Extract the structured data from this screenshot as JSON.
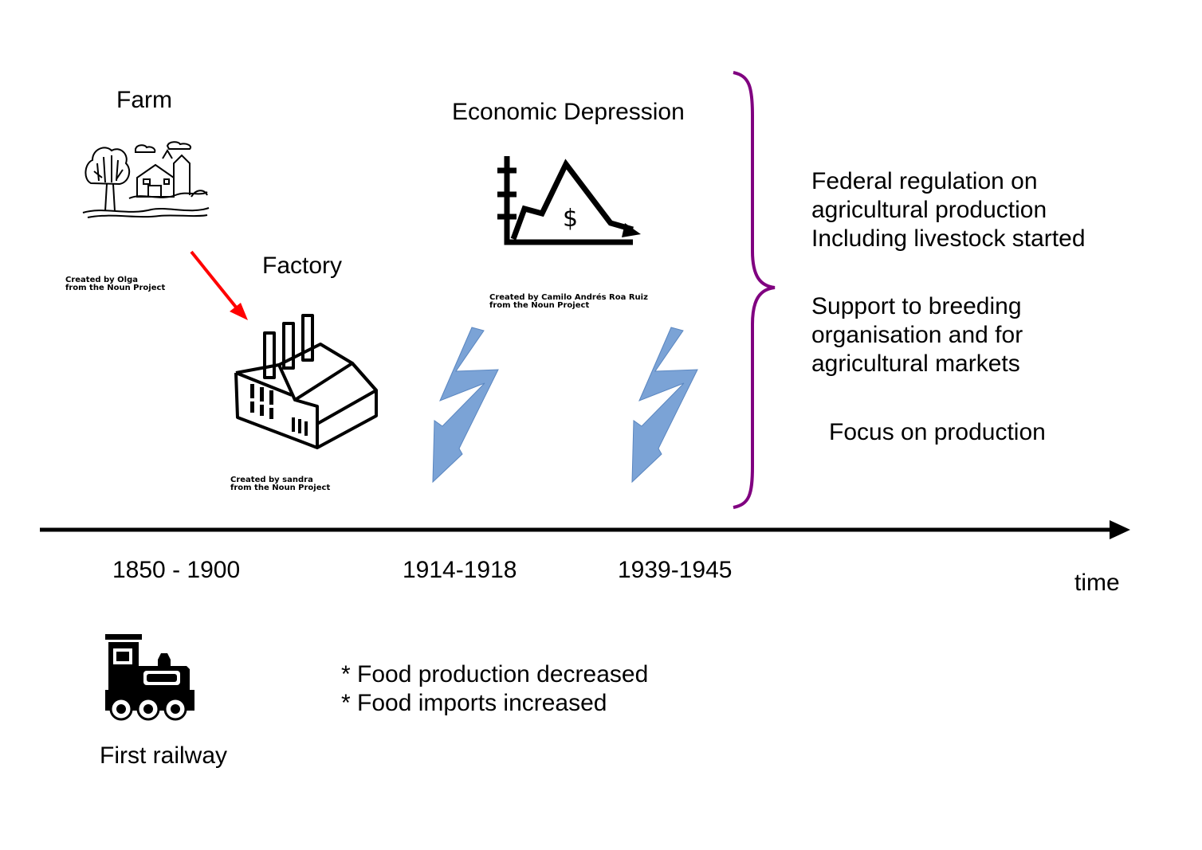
{
  "labels": {
    "farm": "Farm",
    "factory": "Factory",
    "depression": "Economic Depression",
    "railway": "First railway",
    "time": "time"
  },
  "credits": {
    "farm": [
      "Created by Olga",
      "from the Noun Project"
    ],
    "factory": [
      "Created by sandra",
      "from the Noun Project"
    ],
    "depression": [
      "Created by Camilo Andrés Roa Ruiz",
      "from the Noun Project"
    ]
  },
  "periods": [
    "1850 - 1900",
    "1914-1918",
    "1939-1945"
  ],
  "war_effects": [
    "* Food production decreased",
    "* Food imports increased"
  ],
  "policies": {
    "regulation": [
      "Federal regulation on",
      "agricultural production",
      "Including livestock started"
    ],
    "support": [
      "Support to breeding",
      "organisation and for",
      "agricultural markets"
    ],
    "focus": "Focus on production"
  },
  "colors": {
    "arrow": "#ff0000",
    "lightning": "#7ba3d6",
    "brace": "#800080",
    "axis": "#000000"
  },
  "icons": [
    "farm-icon",
    "factory-icon",
    "depression-chart-icon",
    "locomotive-icon",
    "lightning-icon"
  ]
}
